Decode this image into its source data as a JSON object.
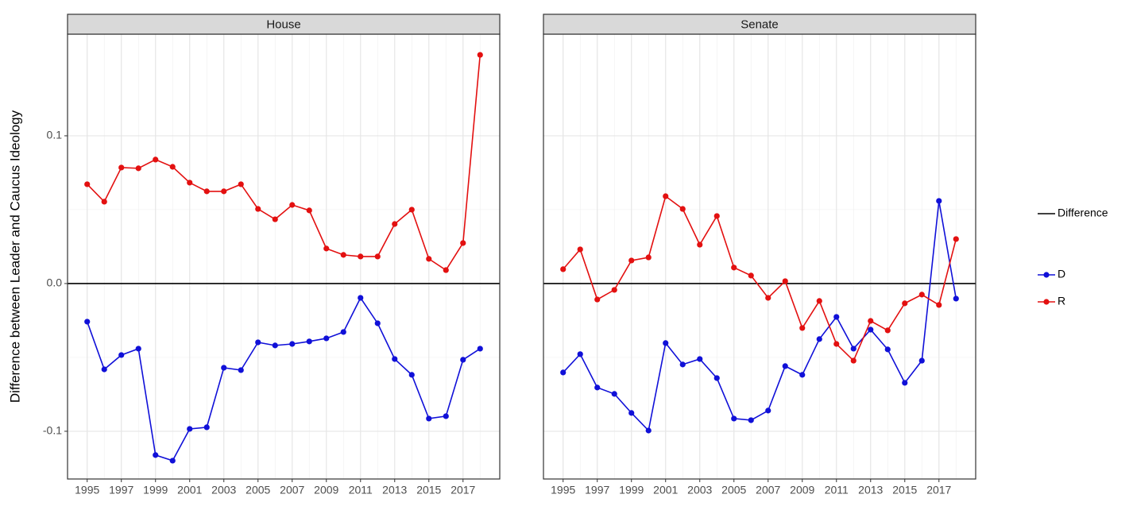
{
  "chart_data": [
    {
      "type": "line",
      "title": "House",
      "y_label": "Difference between Leader and Caucus Ideology",
      "x": [
        1995,
        1996,
        1997,
        1998,
        1999,
        2000,
        2001,
        2002,
        2003,
        2004,
        2005,
        2006,
        2007,
        2008,
        2009,
        2010,
        2011,
        2012,
        2013,
        2014,
        2015,
        2016,
        2017,
        2018
      ],
      "series": [
        {
          "name": "D",
          "color": "#1010d8",
          "values": [
            -0.0258,
            -0.0581,
            -0.0484,
            -0.0441,
            -0.1161,
            -0.1199,
            -0.0984,
            -0.0973,
            -0.057,
            -0.0586,
            -0.0398,
            -0.0419,
            -0.0409,
            -0.0392,
            -0.0371,
            -0.0328,
            -0.0097,
            -0.0269,
            -0.0511,
            -0.0618,
            -0.0914,
            -0.0898,
            -0.0516,
            -0.0441
          ]
        },
        {
          "name": "R",
          "color": "#e31010",
          "values": [
            0.0672,
            0.0554,
            0.0785,
            0.078,
            0.0839,
            0.079,
            0.0683,
            0.0624,
            0.0624,
            0.0672,
            0.0505,
            0.0435,
            0.0532,
            0.0495,
            0.0237,
            0.0194,
            0.0183,
            0.0183,
            0.0403,
            0.05,
            0.0167,
            0.0091,
            0.0274,
            0.1548
          ]
        }
      ],
      "reference_line": {
        "name": "Difference",
        "value": 0,
        "color": "#000000"
      },
      "xlim": [
        1993.85,
        2019.15
      ],
      "xticks": [
        1995,
        1997,
        1999,
        2001,
        2003,
        2005,
        2007,
        2009,
        2011,
        2013,
        2015,
        2017
      ],
      "ylim": [
        -0.1323,
        0.1688
      ],
      "yticks": [
        -0.1,
        {
          "value": 0,
          "label": "0.0"
        },
        0.1
      ],
      "grid": true
    },
    {
      "type": "line",
      "title": "Senate",
      "x": [
        1995,
        1996,
        1997,
        1998,
        1999,
        2000,
        2001,
        2002,
        2003,
        2004,
        2005,
        2006,
        2007,
        2008,
        2009,
        2010,
        2011,
        2012,
        2013,
        2014,
        2015,
        2016,
        2017,
        2018
      ],
      "series": [
        {
          "color": "#1010d8",
          "values": [
            -0.0602,
            -0.0478,
            -0.0704,
            -0.0747,
            -0.0876,
            -0.0995,
            -0.0403,
            -0.0548,
            -0.0511,
            -0.064,
            -0.0914,
            -0.0925,
            -0.086,
            -0.0559,
            -0.0618,
            -0.0376,
            -0.0226,
            -0.0441,
            -0.0312,
            -0.0446,
            -0.0672,
            -0.0522,
            0.0559,
            -0.0102
          ]
        },
        {
          "color": "#e31010",
          "values": [
            0.0097,
            0.0231,
            -0.0108,
            -0.0043,
            0.0156,
            0.0177,
            0.0591,
            0.0505,
            0.0263,
            0.0457,
            0.0108,
            0.0054,
            -0.0097,
            0.0016,
            -0.0301,
            -0.0118,
            -0.0409,
            -0.0522,
            -0.0253,
            -0.0317,
            -0.0134,
            -0.0075,
            -0.0145,
            0.0301
          ]
        }
      ],
      "reference_line": {
        "value": 0,
        "color": "#000000"
      },
      "xlim": [
        1993.85,
        2019.15
      ],
      "xticks": [
        1995,
        1997,
        1999,
        2001,
        2003,
        2005,
        2007,
        2009,
        2011,
        2013,
        2015,
        2017
      ],
      "ylim": [
        -0.1323,
        0.1688
      ],
      "yticks": [
        -0.1,
        {
          "value": 0,
          "label": "0.0"
        },
        0.1
      ],
      "grid": true
    }
  ]
}
